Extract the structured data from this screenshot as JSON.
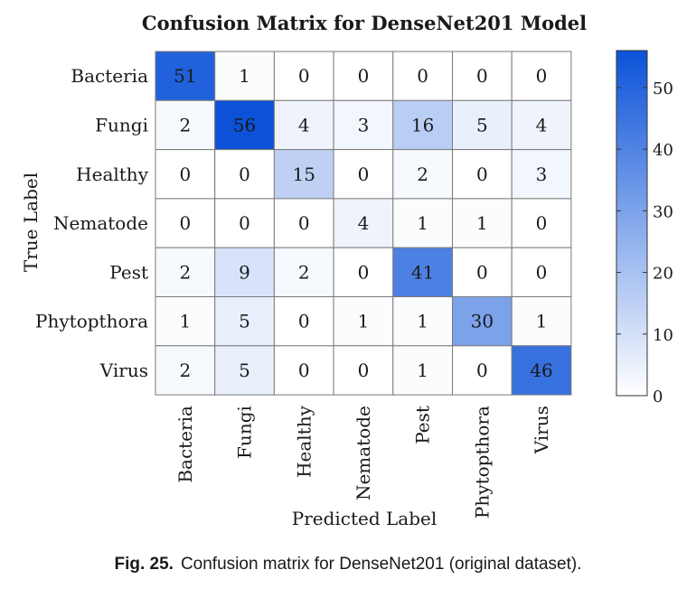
{
  "chart_data": {
    "type": "heatmap",
    "title": "Confusion Matrix for DenseNet201 Model",
    "xlabel": "Predicted Label",
    "ylabel": "True Label",
    "row_labels": [
      "Bacteria",
      "Fungi",
      "Healthy",
      "Nematode",
      "Pest",
      "Phytopthora",
      "Virus"
    ],
    "col_labels": [
      "Bacteria",
      "Fungi",
      "Healthy",
      "Nematode",
      "Pest",
      "Phytopthora",
      "Virus"
    ],
    "values": [
      [
        51,
        1,
        0,
        0,
        0,
        0,
        0
      ],
      [
        2,
        56,
        4,
        3,
        16,
        5,
        4
      ],
      [
        0,
        0,
        15,
        0,
        2,
        0,
        3
      ],
      [
        0,
        0,
        0,
        4,
        1,
        1,
        0
      ],
      [
        2,
        9,
        2,
        0,
        41,
        0,
        0
      ],
      [
        1,
        5,
        0,
        1,
        1,
        30,
        1
      ],
      [
        2,
        5,
        0,
        0,
        1,
        0,
        46
      ]
    ],
    "colorbar": {
      "range": [
        0,
        56
      ],
      "ticks": [
        0,
        10,
        20,
        30,
        40,
        50
      ],
      "low_color": "#ffffff",
      "high_color": "#0b52d8"
    }
  },
  "caption": {
    "label": "Fig. 25.",
    "text": "Confusion matrix for DenseNet201 (original dataset)."
  }
}
